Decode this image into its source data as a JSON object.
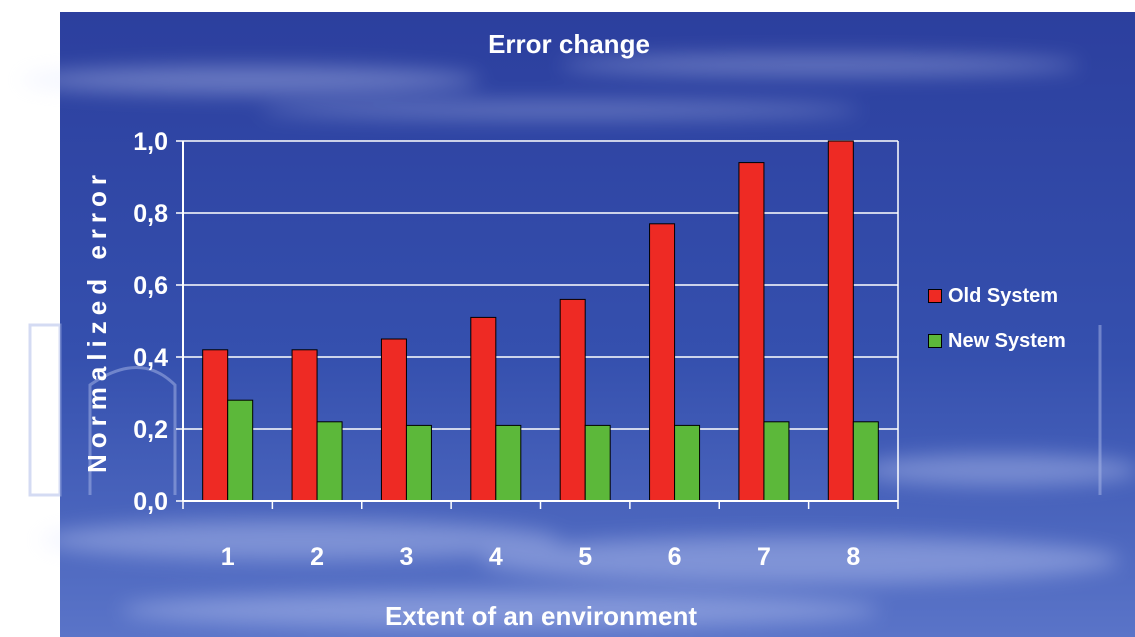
{
  "chart_data": {
    "type": "bar",
    "title": "Error change",
    "xlabel": "Extent of an environment",
    "ylabel": "Normalized error",
    "categories": [
      "1",
      "2",
      "3",
      "4",
      "5",
      "6",
      "7",
      "8"
    ],
    "series": [
      {
        "name": "Old System",
        "color": "#ee2a24",
        "values": [
          0.42,
          0.42,
          0.45,
          0.51,
          0.56,
          0.77,
          0.94,
          1.0
        ]
      },
      {
        "name": "New System",
        "color": "#5cb83a",
        "values": [
          0.28,
          0.22,
          0.21,
          0.21,
          0.21,
          0.21,
          0.22,
          0.22
        ]
      }
    ],
    "ylim": [
      0,
      1.0
    ],
    "yticks": [
      "0,0",
      "0,2",
      "0,4",
      "0,6",
      "0,8",
      "1,0"
    ],
    "grid": true,
    "legend_position": "right"
  },
  "colors": {
    "background_top": "#2c3f9e",
    "background_bottom": "#4f69c2",
    "text": "#ffffff",
    "gridline": "#ffffff"
  }
}
